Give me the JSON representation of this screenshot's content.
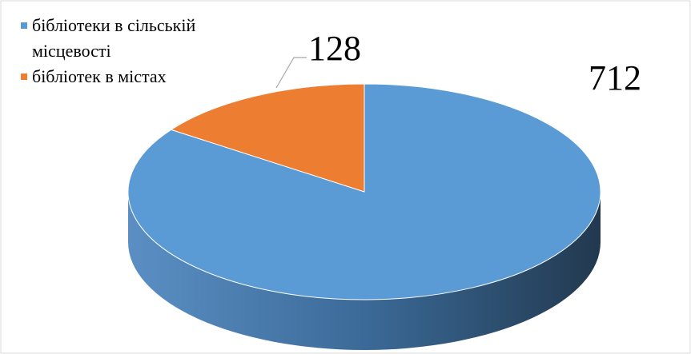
{
  "chart_data": {
    "type": "pie3d",
    "categories": [
      "бібліотеки в сільській місцевості",
      "бібліотек в містах"
    ],
    "values": [
      712,
      128
    ],
    "colors": [
      "#5b9bd5",
      "#ed7d31"
    ],
    "legend": "top-left"
  }
}
